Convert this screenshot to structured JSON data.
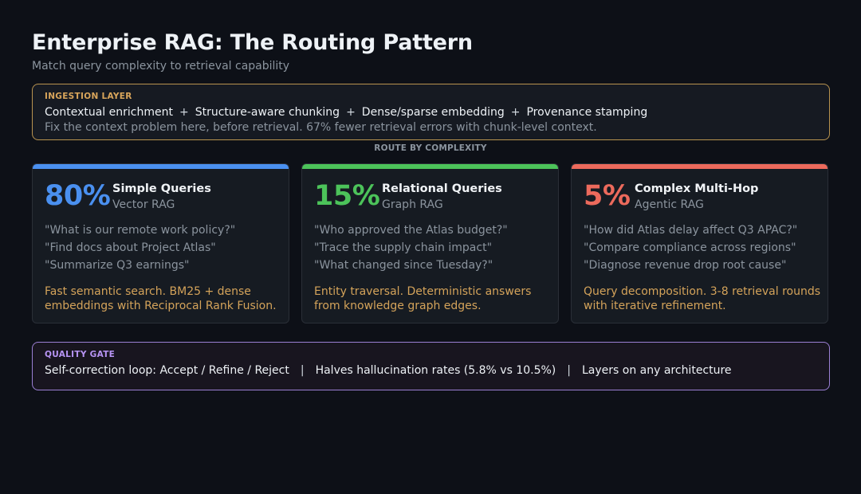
{
  "header": {
    "title": "Enterprise RAG: The Routing Pattern",
    "subtitle": "Match query complexity to retrieval capability"
  },
  "ingestion": {
    "label": "INGESTION LAYER",
    "steps": [
      "Contextual enrichment",
      "Structure-aware chunking",
      "Dense/sparse embedding",
      "Provenance stamping"
    ],
    "separator": "+",
    "note": "Fix the context problem here, before retrieval. 67% fewer retrieval errors with chunk-level context."
  },
  "route_label": "ROUTE BY COMPLEXITY",
  "cards": [
    {
      "percent": "80%",
      "title": "Simple Queries",
      "type": "Vector RAG",
      "color": "#4a90f0",
      "examples": [
        "\"What is our remote work policy?\"",
        "\"Find docs about Project Atlas\"",
        "\"Summarize Q3 earnings\""
      ],
      "description": "Fast semantic search. BM25 + dense embeddings with Reciprocal Rank Fusion."
    },
    {
      "percent": "15%",
      "title": "Relational Queries",
      "type": "Graph RAG",
      "color": "#4cc35a",
      "examples": [
        "\"Who approved the Atlas budget?\"",
        "\"Trace the supply chain impact\"",
        "\"What changed since Tuesday?\""
      ],
      "description": "Entity traversal. Deterministic answers from knowledge graph edges."
    },
    {
      "percent": "5%",
      "title": "Complex Multi-Hop",
      "type": "Agentic RAG",
      "color": "#ec6a5c",
      "examples": [
        "\"How did Atlas delay affect Q3 APAC?\"",
        "\"Compare compliance across regions\"",
        "\"Diagnose revenue drop root cause\""
      ],
      "description": "Query decomposition. 3-8 retrieval rounds with iterative refinement."
    }
  ],
  "quality_gate": {
    "label": "QUALITY GATE",
    "items": [
      "Self-correction loop: Accept / Refine / Reject",
      "Halves hallucination rates (5.8% vs 10.5%)",
      "Layers on any architecture"
    ],
    "separator": "|"
  },
  "colors": {
    "background": "#0d1017",
    "ingestion_border": "#b8934f",
    "gate_border": "#9b7fd4",
    "accent_text": "#d4a35a"
  }
}
